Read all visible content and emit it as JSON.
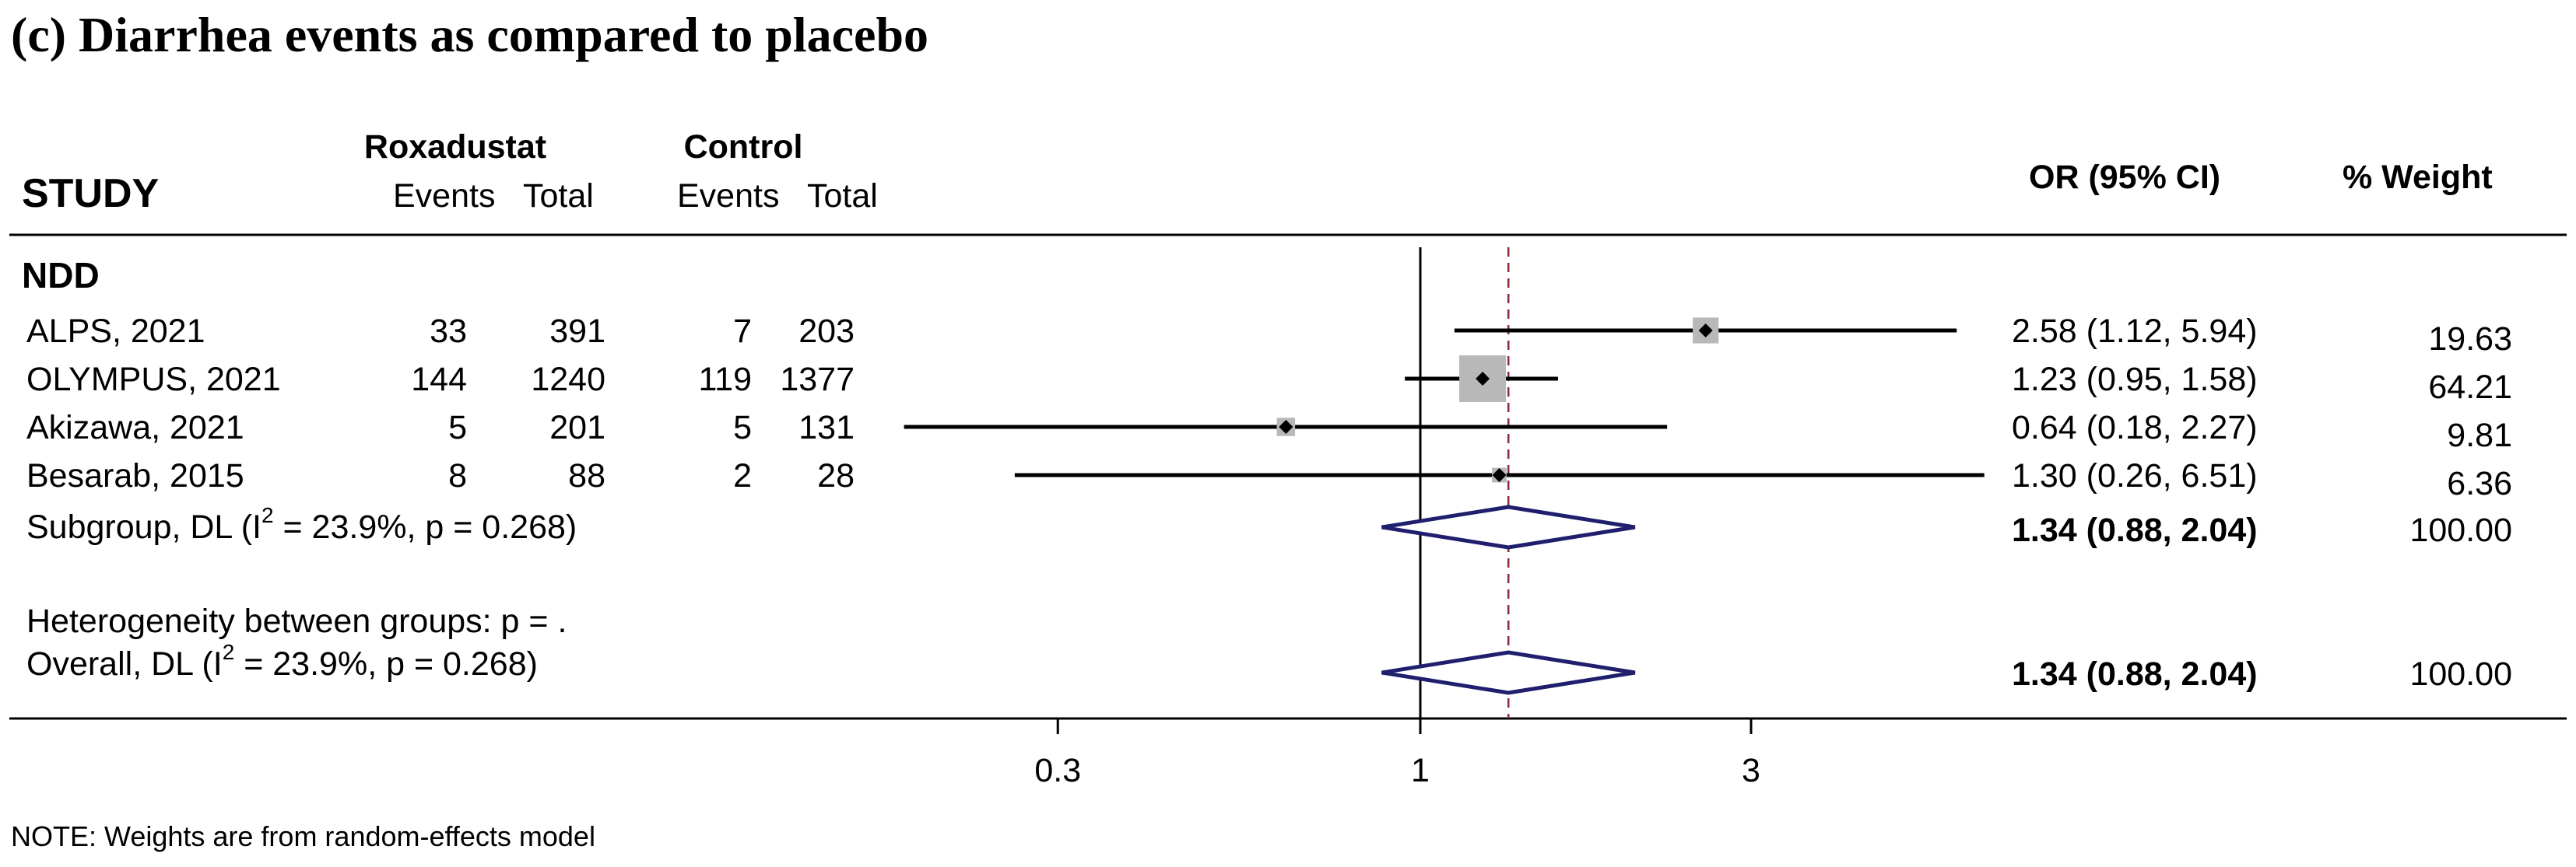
{
  "title": "(c) Diarrhea events as compared to placebo",
  "headers": {
    "study": "STUDY",
    "group1": "Roxadustat",
    "group2": "Control",
    "events": "Events",
    "total": "Total",
    "or_ci": "OR (95% CI)",
    "weight": "% Weight"
  },
  "chart_data": {
    "type": "forest",
    "xscale": "log",
    "ticks": [
      0.3,
      1,
      3
    ],
    "tick_labels": [
      "0.3",
      "1",
      "3"
    ],
    "null_line": 1,
    "pooled_line": 1.34,
    "subgroup": "NDD",
    "studies": [
      {
        "name": "ALPS, 2021",
        "rox_events": "33",
        "rox_total": "391",
        "ctl_events": "7",
        "ctl_total": "203",
        "or": 2.58,
        "lo": 1.12,
        "hi": 5.94,
        "or_ci": "2.58 (1.12, 5.94)",
        "weight": "19.63"
      },
      {
        "name": "OLYMPUS, 2021",
        "rox_events": "144",
        "rox_total": "1240",
        "ctl_events": "119",
        "ctl_total": "1377",
        "or": 1.23,
        "lo": 0.95,
        "hi": 1.58,
        "or_ci": "1.23 (0.95, 1.58)",
        "weight": "64.21"
      },
      {
        "name": "Akizawa, 2021",
        "rox_events": "5",
        "rox_total": "201",
        "ctl_events": "5",
        "ctl_total": "131",
        "or": 0.64,
        "lo": 0.18,
        "hi": 2.27,
        "or_ci": "0.64 (0.18, 2.27)",
        "weight": "9.81"
      },
      {
        "name": "Besarab, 2015",
        "rox_events": "8",
        "rox_total": "88",
        "ctl_events": "2",
        "ctl_total": "28",
        "or": 1.3,
        "lo": 0.26,
        "hi": 6.51,
        "or_ci": "1.30 (0.26, 6.51)",
        "weight": "6.36"
      }
    ],
    "subgroup_summary": {
      "label": "Subgroup, DL (I",
      "stat": " = 23.9%, p = 0.268)",
      "or": 1.34,
      "lo": 0.88,
      "hi": 2.04,
      "or_ci": "1.34 (0.88, 2.04)",
      "weight": "100.00"
    },
    "heterogeneity": "Heterogeneity between groups: p = .",
    "overall": {
      "label": "Overall, DL (I",
      "stat": " = 23.9%, p = 0.268)",
      "or": 1.34,
      "lo": 0.88,
      "hi": 2.04,
      "or_ci": "1.34 (0.88, 2.04)",
      "weight": "100.00"
    },
    "superscript": "2"
  },
  "note": "NOTE: Weights are from random-effects model",
  "colors": {
    "diamond": "#1f1f6e",
    "dashed": "#8b2a3a",
    "box": "#b8b8b8"
  }
}
